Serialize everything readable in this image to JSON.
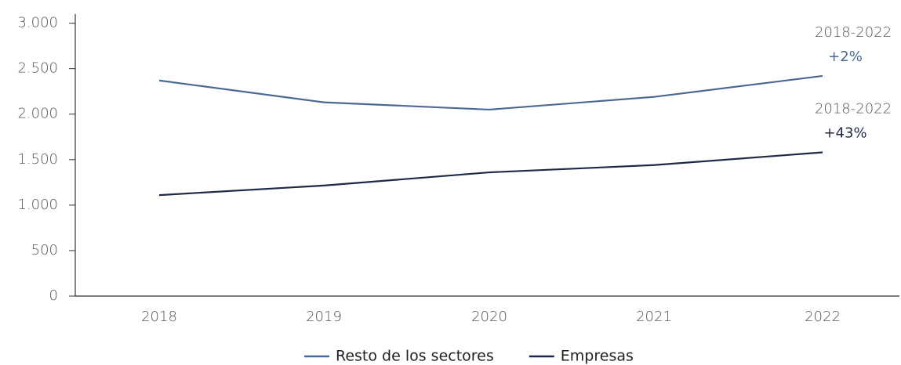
{
  "chart_data": {
    "type": "line",
    "categories": [
      "2018",
      "2019",
      "2020",
      "2021",
      "2022"
    ],
    "series": [
      {
        "name": "Resto de los sectores",
        "color": "#4a6a94",
        "values": [
          2370,
          2130,
          2050,
          2190,
          2420
        ]
      },
      {
        "name": "Empresas",
        "color": "#1e2a45",
        "values": [
          1110,
          1215,
          1360,
          1440,
          1580
        ]
      }
    ],
    "ylim": [
      0,
      3100
    ],
    "yticks": [
      0,
      500,
      {
        "value": 1000,
        "label": "1.000"
      },
      {
        "value": 1500,
        "label": "1.500"
      },
      {
        "value": 2000,
        "label": "2.000"
      },
      {
        "value": 2500,
        "label": "2.500"
      },
      {
        "value": 3000,
        "label": "3.000"
      }
    ],
    "annotations": [
      {
        "period": "2018-2022",
        "change": "+2%",
        "color": "#4a6a94"
      },
      {
        "period": "2018-2022",
        "change": "+43%",
        "color": "#1e2a45"
      }
    ],
    "legend": "bottom"
  }
}
